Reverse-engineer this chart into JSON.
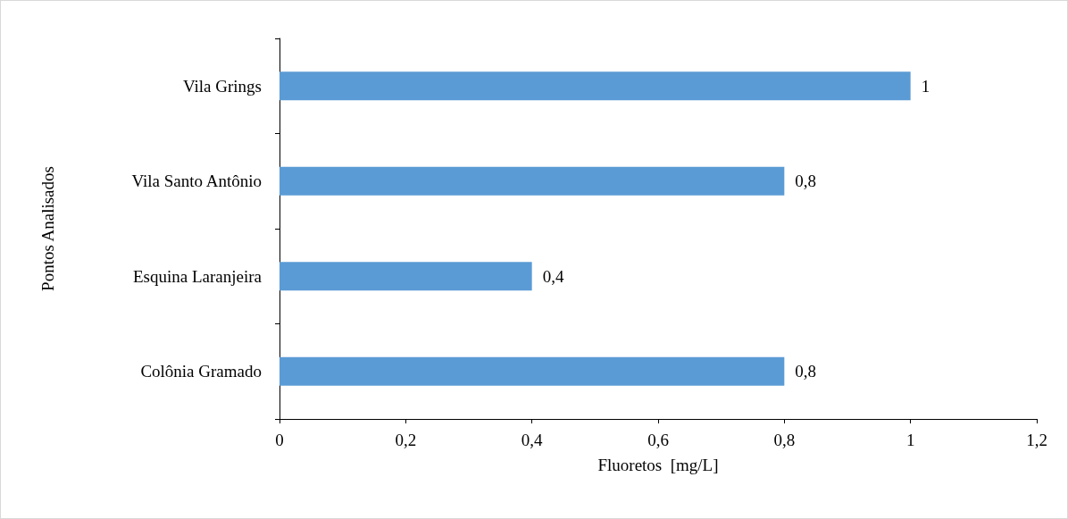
{
  "chart_data": {
    "type": "bar",
    "orientation": "horizontal",
    "xlabel": "Fluoretos  [mg/L]",
    "ylabel": "Pontos Analisados",
    "categories": [
      "Vila Grings",
      "Vila Santo Antônio",
      "Esquina Laranjeira",
      "Colônia Gramado"
    ],
    "values": [
      1,
      0.8,
      0.4,
      0.8
    ],
    "color": "#5b9bd5",
    "value_labels": [
      "1",
      "0,8",
      "0,4",
      "0,8"
    ],
    "xlim": [
      0,
      1.2
    ],
    "xticks": [
      0,
      {
        "value": 0.2,
        "label": "0,2"
      },
      {
        "value": 0.4,
        "label": "0,4"
      },
      {
        "value": 0.6,
        "label": "0,6"
      },
      {
        "value": 0.8,
        "label": "0,8"
      },
      1,
      {
        "value": 1.2,
        "label": "1,2"
      }
    ],
    "grid": false
  }
}
